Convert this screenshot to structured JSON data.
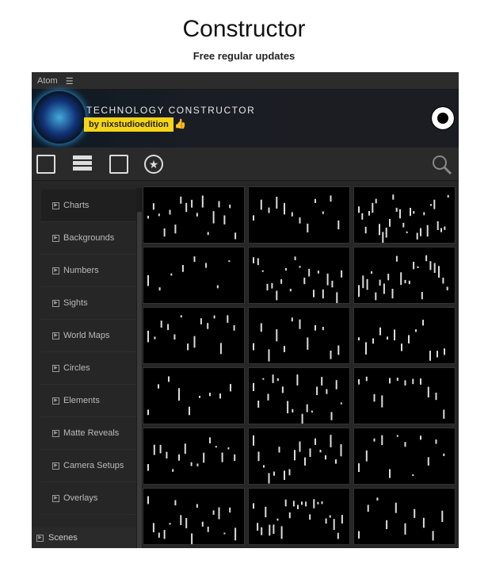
{
  "page": {
    "title": "Constructor",
    "subtitle": "Free regular updates"
  },
  "app": {
    "name": "Atom",
    "menu_icon": "hamburger-icon"
  },
  "banner": {
    "title": "TECHNOLOGY CONSTRUCTOR",
    "author": "by nixstudioedition",
    "accent": "#f5d516"
  },
  "toolbar": {
    "icons": [
      "sliders-icon",
      "list-icon",
      "film-file-icon",
      "star-icon",
      "search-icon"
    ]
  },
  "sidebar": {
    "items": [
      {
        "label": "Charts"
      },
      {
        "label": "Backgrounds"
      },
      {
        "label": "Numbers"
      },
      {
        "label": "Sights"
      },
      {
        "label": "World Maps"
      },
      {
        "label": "Circles"
      },
      {
        "label": "Elements"
      },
      {
        "label": "Matte Reveals"
      },
      {
        "label": "Camera Setups"
      },
      {
        "label": "Overlays"
      }
    ],
    "selected": "Charts",
    "footer": "Scenes"
  },
  "grid": {
    "count": 18
  }
}
